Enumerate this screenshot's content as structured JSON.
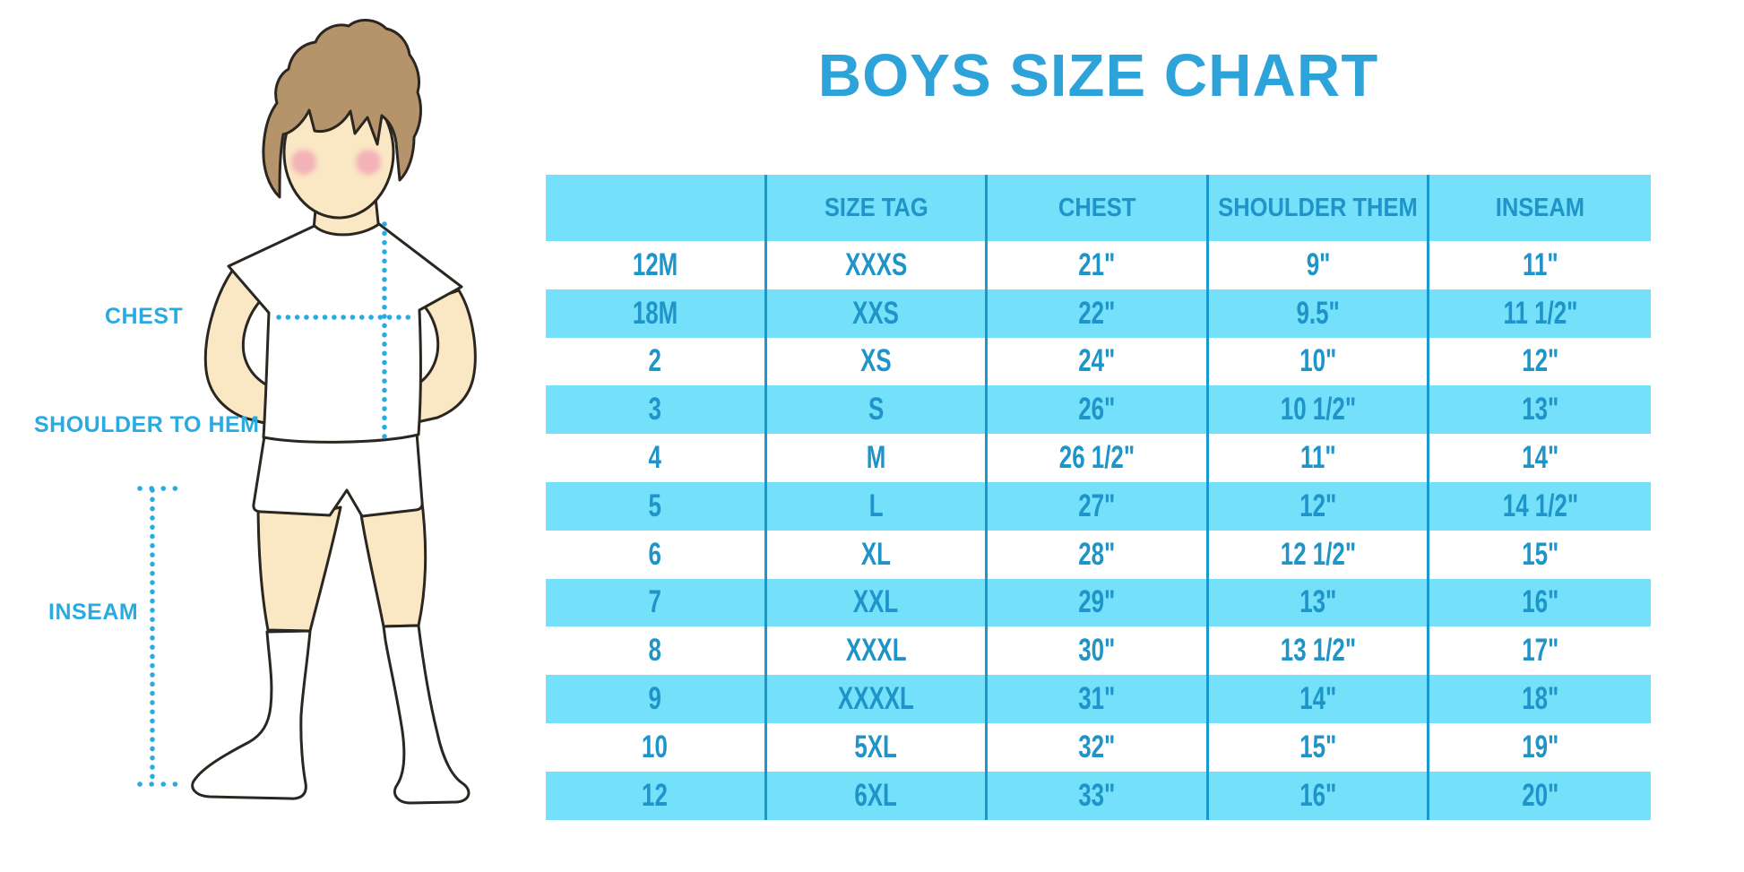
{
  "page": {
    "title": "BOYS SIZE CHART"
  },
  "diagram": {
    "chest_label": "CHEST",
    "shoulder_to_hem_label": "SHOULDER TO HEM",
    "inseam_label": "INSEAM",
    "figure": "illustrated boy in white t-shirt, shorts and knee socks with dotted measurement lines for chest, shoulder-to-hem and inseam"
  },
  "colors": {
    "title_blue": "#2EA3D9",
    "label_blue": "#29ABE2",
    "table_text_blue": "#1E94C9",
    "stripe_cyan": "#74E0FA",
    "divider_blue": "#1798CF",
    "dotted_cyan": "#29ABE2",
    "hair_brown": "#B6946B",
    "skin": "#FAE7C4",
    "blush_pink": "#F2A9B6",
    "outline": "#2B2620"
  },
  "chart_data": {
    "type": "table",
    "title": "BOYS SIZE CHART",
    "columns": [
      "",
      "SIZE TAG",
      "CHEST",
      "SHOULDER THEM",
      "INSEAM"
    ],
    "rows": [
      [
        "12M",
        "XXXS",
        "21\"",
        "9\"",
        "11\""
      ],
      [
        "18M",
        "XXS",
        "22\"",
        "9.5\"",
        "11 1/2\""
      ],
      [
        "2",
        "XS",
        "24\"",
        "10\"",
        "12\""
      ],
      [
        "3",
        "S",
        "26\"",
        "10 1/2\"",
        "13\""
      ],
      [
        "4",
        "M",
        "26 1/2\"",
        "11\"",
        "14\""
      ],
      [
        "5",
        "L",
        "27\"",
        "12\"",
        "14 1/2\""
      ],
      [
        "6",
        "XL",
        "28\"",
        "12 1/2\"",
        "15\""
      ],
      [
        "7",
        "XXL",
        "29\"",
        "13\"",
        "16\""
      ],
      [
        "8",
        "XXXL",
        "30\"",
        "13 1/2\"",
        "17\""
      ],
      [
        "9",
        "XXXXL",
        "31\"",
        "14\"",
        "18\""
      ],
      [
        "10",
        "5XL",
        "32\"",
        "15\"",
        "19\""
      ],
      [
        "12",
        "6XL",
        "33\"",
        "16\"",
        "20\""
      ]
    ],
    "layout": {
      "stripe_pattern": "header and alternate rows cyan",
      "grid": "vertical dividers only",
      "legend": "none"
    }
  }
}
